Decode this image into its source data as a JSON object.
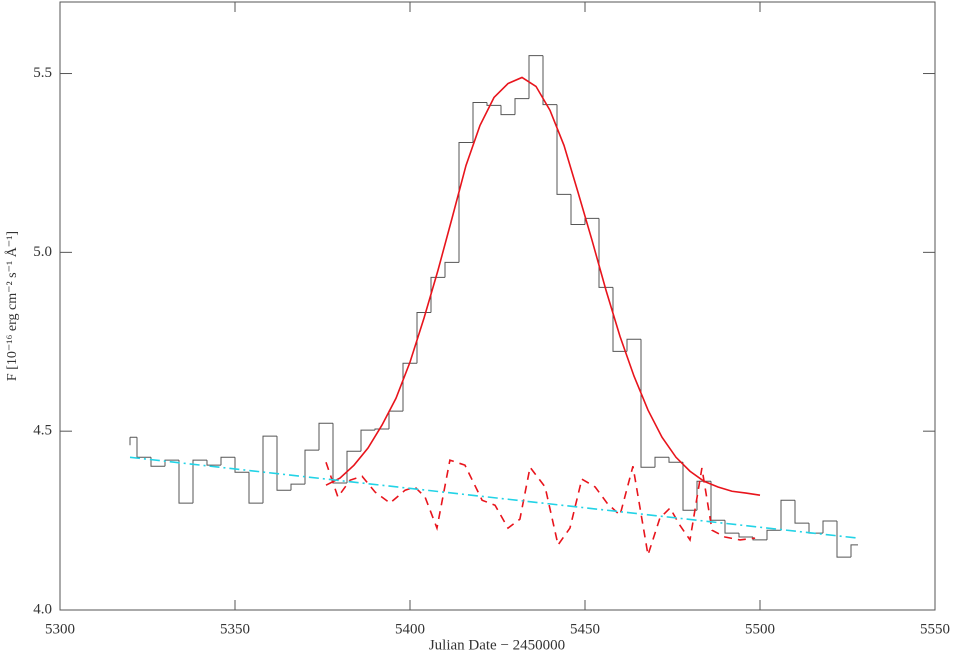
{
  "chart_data": {
    "type": "line",
    "xlabel": "Julian Date − 2450000",
    "ylabel": "F [10⁻¹⁶ erg cm⁻² s⁻¹ Å⁻¹]",
    "xlim": [
      5300,
      5550
    ],
    "ylim": [
      4.0,
      5.7
    ],
    "xticks": [
      5300,
      5350,
      5400,
      5450,
      5500,
      5550
    ],
    "yticks": [
      {
        "value": 4,
        "label": "4.0"
      },
      4.5,
      {
        "value": 5,
        "label": "5.0"
      },
      5.5
    ],
    "series": [
      {
        "type": "histogram",
        "color": "#555555",
        "bins": [
          5320,
          5322,
          5326,
          5330,
          5334,
          5338,
          5342,
          5346,
          5350,
          5354,
          5358,
          5362,
          5366,
          5370,
          5374,
          5378,
          5382,
          5386,
          5390,
          5394,
          5398,
          5402,
          5406,
          5410,
          5414,
          5418,
          5422,
          5426,
          5430,
          5434,
          5438,
          5442,
          5446,
          5450,
          5454,
          5458,
          5462,
          5466,
          5470,
          5474,
          5478,
          5482,
          5486,
          5490,
          5494,
          5498,
          5502,
          5506,
          5510,
          5514,
          5518,
          5522,
          5526,
          5528
        ],
        "values": [
          4.483,
          4.427,
          4.402,
          4.419,
          4.299,
          4.419,
          4.405,
          4.427,
          4.385,
          4.299,
          4.486,
          4.335,
          4.352,
          4.447,
          4.522,
          4.355,
          4.444,
          4.503,
          4.506,
          4.556,
          4.69,
          4.832,
          4.93,
          4.972,
          5.307,
          5.419,
          5.411,
          5.385,
          5.43,
          5.55,
          5.413,
          5.162,
          5.078,
          5.095,
          4.902,
          4.723,
          4.757,
          4.399,
          4.427,
          4.413,
          4.279,
          4.36,
          4.251,
          4.215,
          4.204,
          4.196,
          4.223,
          4.307,
          4.243,
          4.215,
          4.249,
          4.148,
          4.182
        ]
      },
      {
        "type": "line",
        "style": "solid",
        "color": "#e8141c",
        "x": [
          5376,
          5380,
          5384,
          5388,
          5392,
          5396,
          5400,
          5404,
          5408,
          5412,
          5416,
          5420,
          5424,
          5428,
          5432,
          5436,
          5440,
          5444,
          5448,
          5452,
          5456,
          5460,
          5464,
          5468,
          5472,
          5476,
          5480,
          5484,
          5488,
          5492,
          5496,
          5500
        ],
        "values": [
          4.349,
          4.369,
          4.405,
          4.453,
          4.517,
          4.592,
          4.693,
          4.816,
          4.95,
          5.095,
          5.243,
          5.355,
          5.433,
          5.472,
          5.489,
          5.464,
          5.397,
          5.299,
          5.168,
          5.034,
          4.894,
          4.765,
          4.654,
          4.559,
          4.483,
          4.427,
          4.388,
          4.36,
          4.344,
          4.332,
          4.327,
          4.321
        ]
      },
      {
        "type": "line",
        "style": "dashed",
        "color": "#e8141c",
        "x": [
          5376.0,
          5379.4,
          5382.9,
          5386.3,
          5390.0,
          5394.3,
          5398.6,
          5401.4,
          5404.3,
          5407.7,
          5411.4,
          5415.7,
          5420.6,
          5424.3,
          5428.0,
          5431.4,
          5434.3,
          5438.6,
          5442.3,
          5445.7,
          5449.1,
          5452.9,
          5456.3,
          5460.0,
          5463.7,
          5468.0,
          5471.4,
          5474.3,
          5477.1,
          5480.0,
          5483.4,
          5486.3,
          5490.0,
          5494.3,
          5498.6
        ],
        "values": [
          4.413,
          4.316,
          4.363,
          4.374,
          4.33,
          4.299,
          4.335,
          4.344,
          4.316,
          4.229,
          4.419,
          4.405,
          4.307,
          4.293,
          4.229,
          4.254,
          4.399,
          4.344,
          4.182,
          4.229,
          4.366,
          4.344,
          4.299,
          4.265,
          4.402,
          4.154,
          4.257,
          4.285,
          4.237,
          4.196,
          4.397,
          4.223,
          4.204,
          4.196,
          4.201
        ]
      },
      {
        "type": "line",
        "style": "dashdot",
        "color": "#22d3e6",
        "x": [
          5320,
          5528
        ],
        "values": [
          4.427,
          4.201
        ]
      }
    ]
  }
}
